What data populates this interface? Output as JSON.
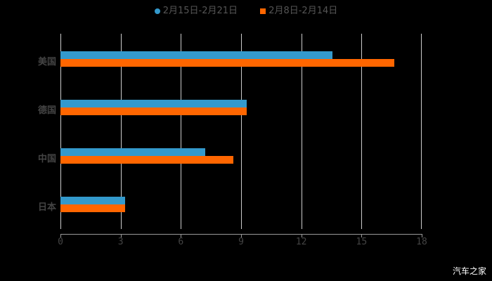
{
  "chart_data": {
    "type": "bar",
    "orientation": "horizontal",
    "title": "",
    "categories": [
      "美国",
      "德国",
      "中国",
      "日本"
    ],
    "series": [
      {
        "name": "2月15日-2月21日",
        "color": "#3399cc",
        "values": [
          13.55,
          9.28,
          7.21,
          3.22
        ]
      },
      {
        "name": "2月8日-2月14日",
        "color": "#ff6600",
        "values": [
          16.63,
          9.28,
          8.61,
          3.22
        ]
      }
    ],
    "xlabel": "",
    "ylabel": "",
    "xlim": [
      0,
      18
    ],
    "xticks": [
      "0",
      "3",
      "6",
      "9",
      "12",
      "15",
      "18"
    ],
    "grid": true,
    "legend_position": "top"
  },
  "legend": [
    {
      "label": "2月15日-2月21日",
      "color": "#3399cc"
    },
    {
      "label": "2月8日-2月14日",
      "color": "#ff6600"
    }
  ],
  "watermark": "汽车之家"
}
